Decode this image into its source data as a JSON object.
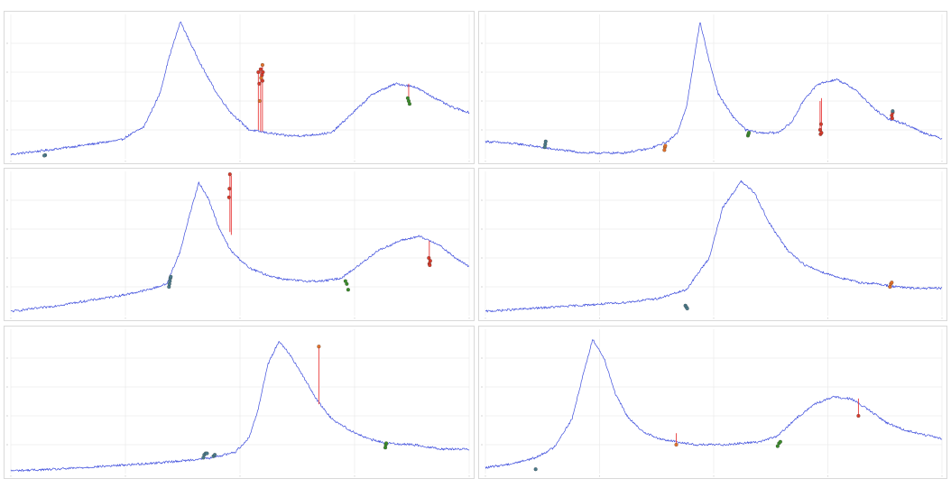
{
  "colors": {
    "signal": "#3b4bdc",
    "grid": "#e6e6e6",
    "frame": "#d9d9d9",
    "marker_teal": "#4a7a8a",
    "marker_green": "#3a8a2a",
    "marker_orange": "#e0702a",
    "marker_red": "#d63a2a",
    "connector": "#e83a3a"
  },
  "chart_data": [
    {
      "type": "line",
      "title": "",
      "xlabel": "",
      "ylabel": "",
      "xlim": [
        0,
        1000
      ],
      "ylim": [
        0,
        100
      ],
      "grid": true,
      "x_ticks": [
        0,
        250,
        500,
        750,
        1000
      ],
      "y_ticks": [
        20,
        40,
        60,
        80
      ],
      "curve": [
        [
          0,
          3
        ],
        [
          80,
          6
        ],
        [
          150,
          9
        ],
        [
          240,
          13
        ],
        [
          290,
          22
        ],
        [
          325,
          45
        ],
        [
          345,
          70
        ],
        [
          370,
          95
        ],
        [
          395,
          78
        ],
        [
          420,
          62
        ],
        [
          450,
          45
        ],
        [
          480,
          32
        ],
        [
          520,
          20
        ],
        [
          560,
          18
        ],
        [
          600,
          16
        ],
        [
          640,
          16
        ],
        [
          700,
          18
        ],
        [
          740,
          30
        ],
        [
          790,
          45
        ],
        [
          840,
          52
        ],
        [
          880,
          50
        ],
        [
          920,
          43
        ],
        [
          960,
          36
        ],
        [
          1000,
          32
        ]
      ],
      "markers": [
        {
          "kind": "teal",
          "points": [
            [
              75,
              2.5
            ],
            [
              73,
              2.2
            ]
          ]
        },
        {
          "kind": "green",
          "points": [
            [
              868,
              40
            ],
            [
              870,
              38
            ],
            [
              866,
              42
            ]
          ]
        },
        {
          "kind": "red",
          "points": [
            [
              540,
              60
            ],
            [
              542,
              52
            ],
            [
              545,
              62
            ],
            [
              548,
              58
            ],
            [
              549,
              54
            ],
            [
              550,
              60
            ]
          ]
        },
        {
          "kind": "orange",
          "points": [
            [
              549,
              65
            ],
            [
              546,
              56
            ],
            [
              543,
              40
            ]
          ]
        }
      ],
      "connectors": [
        [
          540,
          60,
          540,
          20
        ],
        [
          545,
          62,
          545,
          19
        ],
        [
          549,
          65,
          549,
          19
        ],
        [
          868,
          52,
          868,
          40
        ]
      ]
    },
    {
      "type": "line",
      "title": "",
      "xlabel": "",
      "ylabel": "",
      "xlim": [
        0,
        1000
      ],
      "ylim": [
        0,
        100
      ],
      "grid": true,
      "x_ticks": [
        0,
        250,
        500,
        750,
        1000
      ],
      "y_ticks": [
        20,
        40,
        60,
        80
      ],
      "curve": [
        [
          0,
          12
        ],
        [
          80,
          10
        ],
        [
          140,
          7
        ],
        [
          220,
          4
        ],
        [
          300,
          4
        ],
        [
          360,
          7
        ],
        [
          400,
          12
        ],
        [
          420,
          18
        ],
        [
          440,
          35
        ],
        [
          455,
          65
        ],
        [
          470,
          95
        ],
        [
          490,
          68
        ],
        [
          510,
          45
        ],
        [
          540,
          30
        ],
        [
          570,
          20
        ],
        [
          600,
          18
        ],
        [
          640,
          18
        ],
        [
          670,
          25
        ],
        [
          700,
          42
        ],
        [
          730,
          52
        ],
        [
          770,
          55
        ],
        [
          810,
          48
        ],
        [
          850,
          35
        ],
        [
          880,
          28
        ],
        [
          920,
          24
        ],
        [
          960,
          18
        ],
        [
          1000,
          14
        ]
      ],
      "markers": [
        {
          "kind": "teal",
          "points": [
            [
              130,
              8
            ],
            [
              131,
              10
            ],
            [
              132,
              12
            ]
          ]
        },
        {
          "kind": "orange",
          "points": [
            [
              392,
              6
            ],
            [
              393,
              8
            ],
            [
              394,
              9
            ]
          ]
        },
        {
          "kind": "green",
          "points": [
            [
              575,
              16
            ],
            [
              576,
              17
            ],
            [
              577,
              18
            ]
          ]
        },
        {
          "kind": "red",
          "points": [
            [
              733,
              20
            ],
            [
              734,
              17
            ],
            [
              735,
              24
            ],
            [
              736,
              18
            ]
          ]
        },
        {
          "kind": "red",
          "points": [
            [
              890,
              30
            ],
            [
              891,
              28
            ],
            [
              892,
              32
            ]
          ]
        },
        {
          "kind": "teal",
          "points": [
            [
              892,
              33
            ]
          ]
        }
      ],
      "connectors": [
        [
          733,
          40,
          733,
          20
        ],
        [
          736,
          42,
          736,
          18
        ]
      ]
    },
    {
      "type": "line",
      "title": "",
      "xlabel": "",
      "ylabel": "",
      "xlim": [
        0,
        1000
      ],
      "ylim": [
        0,
        100
      ],
      "grid": true,
      "x_ticks": [
        0,
        250,
        500,
        750,
        1000
      ],
      "y_ticks": [
        20,
        40,
        60,
        80
      ],
      "curve": [
        [
          0,
          3
        ],
        [
          80,
          6
        ],
        [
          160,
          10
        ],
        [
          240,
          14
        ],
        [
          300,
          18
        ],
        [
          340,
          22
        ],
        [
          370,
          45
        ],
        [
          390,
          70
        ],
        [
          410,
          92
        ],
        [
          430,
          82
        ],
        [
          455,
          60
        ],
        [
          480,
          45
        ],
        [
          520,
          33
        ],
        [
          560,
          28
        ],
        [
          600,
          25
        ],
        [
          640,
          24
        ],
        [
          680,
          24
        ],
        [
          720,
          26
        ],
        [
          760,
          35
        ],
        [
          800,
          45
        ],
        [
          850,
          52
        ],
        [
          890,
          55
        ],
        [
          930,
          50
        ],
        [
          970,
          40
        ],
        [
          1000,
          34
        ]
      ],
      "markers": [
        {
          "kind": "teal",
          "points": [
            [
              345,
              20
            ],
            [
              346,
              22
            ],
            [
              347,
              24
            ],
            [
              348,
              26
            ],
            [
              349,
              27
            ]
          ]
        },
        {
          "kind": "red",
          "points": [
            [
              478,
              98
            ],
            [
              477,
              88
            ],
            [
              476,
              82
            ]
          ]
        },
        {
          "kind": "green",
          "points": [
            [
              730,
              24
            ],
            [
              733,
              22
            ],
            [
              736,
              18
            ]
          ]
        },
        {
          "kind": "red",
          "points": [
            [
              912,
              40
            ],
            [
              913,
              36
            ],
            [
              914,
              35
            ],
            [
              915,
              38
            ]
          ]
        }
      ],
      "connectors": [
        [
          478,
          98,
          478,
          58
        ],
        [
          481,
          97,
          481,
          56
        ],
        [
          913,
          52,
          913,
          40
        ]
      ]
    },
    {
      "type": "line",
      "title": "",
      "xlabel": "",
      "ylabel": "",
      "xlim": [
        0,
        1000
      ],
      "ylim": [
        0,
        100
      ],
      "grid": true,
      "x_ticks": [
        0,
        250,
        500,
        750,
        1000
      ],
      "y_ticks": [
        20,
        40,
        60,
        80
      ],
      "curve": [
        [
          0,
          3
        ],
        [
          100,
          5
        ],
        [
          200,
          7
        ],
        [
          300,
          9
        ],
        [
          380,
          12
        ],
        [
          440,
          18
        ],
        [
          490,
          40
        ],
        [
          520,
          75
        ],
        [
          560,
          93
        ],
        [
          590,
          85
        ],
        [
          620,
          65
        ],
        [
          660,
          46
        ],
        [
          700,
          35
        ],
        [
          740,
          30
        ],
        [
          780,
          26
        ],
        [
          820,
          23
        ],
        [
          860,
          22
        ],
        [
          900,
          20
        ],
        [
          940,
          19
        ],
        [
          1000,
          19
        ]
      ],
      "markers": [
        {
          "kind": "teal",
          "points": [
            [
              438,
              7
            ],
            [
              440,
              6
            ],
            [
              442,
              5
            ]
          ]
        },
        {
          "kind": "orange",
          "points": [
            [
              886,
              20
            ],
            [
              888,
              22
            ],
            [
              890,
              23
            ]
          ]
        }
      ],
      "connectors": []
    },
    {
      "type": "line",
      "title": "",
      "xlabel": "",
      "ylabel": "",
      "xlim": [
        0,
        1000
      ],
      "ylim": [
        0,
        100
      ],
      "grid": true,
      "x_ticks": [
        0,
        250,
        500,
        750,
        1000
      ],
      "y_ticks": [
        20,
        40,
        60,
        80
      ],
      "curve": [
        [
          0,
          2
        ],
        [
          100,
          3
        ],
        [
          200,
          5
        ],
        [
          300,
          7
        ],
        [
          380,
          9
        ],
        [
          440,
          11
        ],
        [
          490,
          15
        ],
        [
          520,
          25
        ],
        [
          540,
          45
        ],
        [
          560,
          75
        ],
        [
          585,
          92
        ],
        [
          610,
          82
        ],
        [
          640,
          66
        ],
        [
          670,
          50
        ],
        [
          700,
          38
        ],
        [
          740,
          30
        ],
        [
          780,
          24
        ],
        [
          820,
          21
        ],
        [
          880,
          20
        ],
        [
          940,
          17
        ],
        [
          1000,
          17
        ]
      ],
      "markers": [
        {
          "kind": "teal",
          "points": [
            [
              420,
              11
            ],
            [
              422,
              13
            ],
            [
              425,
              14
            ],
            [
              428,
              14
            ],
            [
              442,
              12
            ],
            [
              445,
              13
            ]
          ]
        },
        {
          "kind": "orange",
          "points": [
            [
              672,
              88
            ]
          ]
        },
        {
          "kind": "green",
          "points": [
            [
              817,
              18
            ],
            [
              818,
              20
            ],
            [
              819,
              21
            ]
          ]
        }
      ],
      "connectors": [
        [
          672,
          88,
          672,
          48
        ],
        [
          817,
          20,
          817,
          19
        ]
      ]
    },
    {
      "type": "line",
      "title": "",
      "xlabel": "",
      "ylabel": "",
      "xlim": [
        0,
        1000
      ],
      "ylim": [
        0,
        100
      ],
      "grid": true,
      "x_ticks": [
        0,
        250,
        500,
        750,
        1000
      ],
      "y_ticks": [
        20,
        40,
        60,
        80
      ],
      "curve": [
        [
          0,
          4
        ],
        [
          60,
          7
        ],
        [
          110,
          11
        ],
        [
          150,
          18
        ],
        [
          190,
          38
        ],
        [
          215,
          70
        ],
        [
          235,
          93
        ],
        [
          260,
          80
        ],
        [
          285,
          55
        ],
        [
          310,
          40
        ],
        [
          340,
          30
        ],
        [
          380,
          24
        ],
        [
          420,
          22
        ],
        [
          460,
          20
        ],
        [
          520,
          20
        ],
        [
          600,
          22
        ],
        [
          640,
          26
        ],
        [
          680,
          38
        ],
        [
          720,
          48
        ],
        [
          760,
          53
        ],
        [
          800,
          52
        ],
        [
          840,
          44
        ],
        [
          880,
          35
        ],
        [
          920,
          30
        ],
        [
          960,
          27
        ],
        [
          1000,
          24
        ]
      ],
      "markers": [
        {
          "kind": "teal",
          "points": [
            [
              110,
              3
            ]
          ]
        },
        {
          "kind": "orange",
          "points": [
            [
              418,
              20
            ]
          ]
        },
        {
          "kind": "green",
          "points": [
            [
              640,
              19
            ],
            [
              643,
              21
            ],
            [
              646,
              22
            ]
          ]
        },
        {
          "kind": "red",
          "points": [
            [
              817,
              40
            ]
          ]
        }
      ],
      "connectors": [
        [
          418,
          20,
          418,
          28
        ],
        [
          817,
          40,
          817,
          52
        ]
      ]
    }
  ]
}
